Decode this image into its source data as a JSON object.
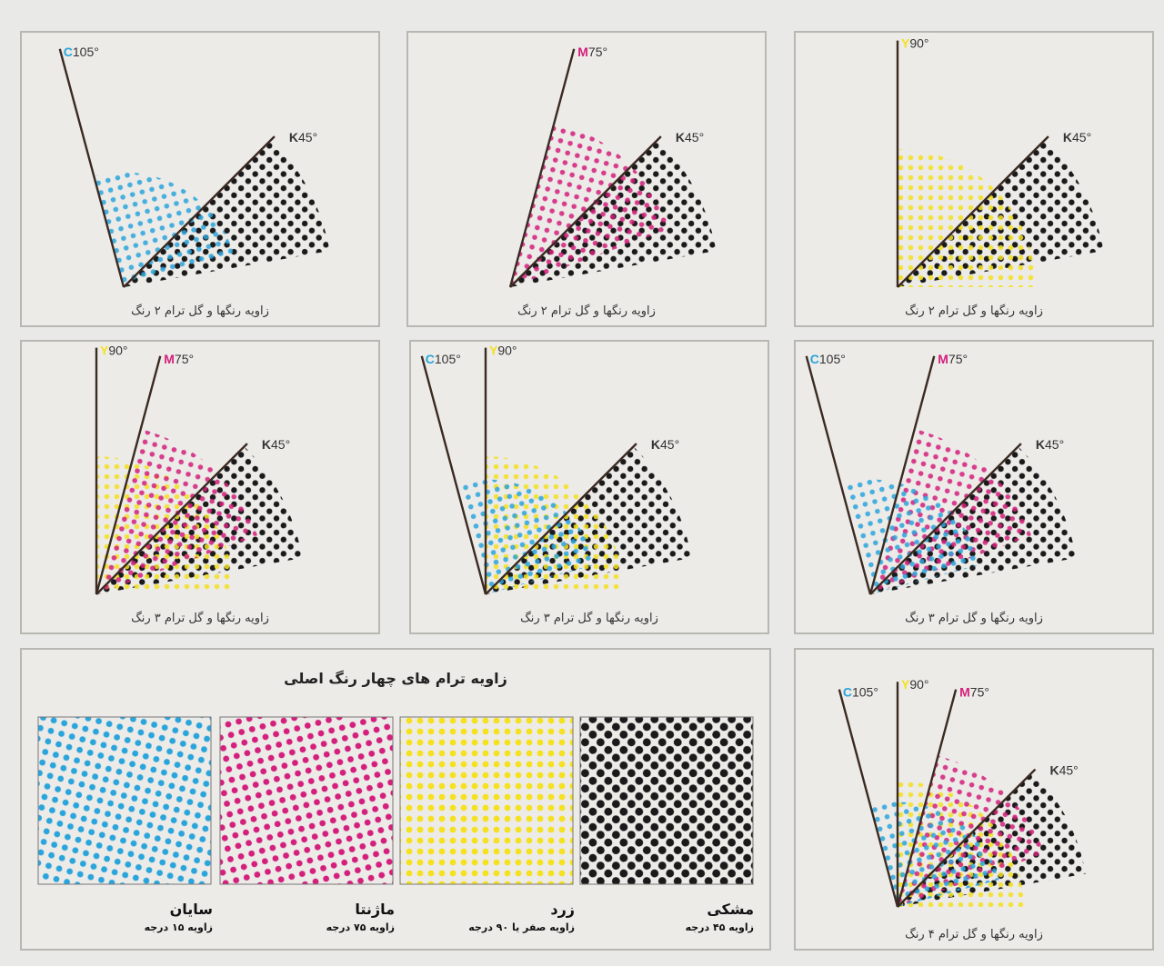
{
  "colors": {
    "C": "#2aa5dc",
    "M": "#d41f7c",
    "Y": "#f5e11e",
    "K": "#1a1a1a",
    "line": "#3b2a22"
  },
  "labels": {
    "C": "105°",
    "M": "75°",
    "Y": "90°",
    "K": "45°"
  },
  "letters": {
    "C": "C",
    "M": "M",
    "Y": "Y",
    "K": "K"
  },
  "panels": [
    {
      "id": "p1",
      "caption": "زاویه رنگها و گل ترام ۲ رنگ",
      "inks": [
        "C",
        "K"
      ]
    },
    {
      "id": "p2",
      "caption": "زاویه رنگها و گل ترام ۲ رنگ",
      "inks": [
        "M",
        "K"
      ]
    },
    {
      "id": "p3",
      "caption": "زاویه رنگها و گل ترام ۲ رنگ",
      "inks": [
        "Y",
        "K"
      ]
    },
    {
      "id": "p4",
      "caption": "زاویه رنگها و گل ترام ۳ رنگ",
      "inks": [
        "Y",
        "M",
        "K"
      ]
    },
    {
      "id": "p5",
      "caption": "زاویه رنگها و گل ترام ۳ رنگ",
      "inks": [
        "C",
        "Y",
        "K"
      ]
    },
    {
      "id": "p6",
      "caption": "زاویه رنگها و گل ترام ۳ رنگ",
      "inks": [
        "C",
        "M",
        "K"
      ]
    },
    {
      "id": "p7",
      "caption": "زاویه رنگها و گل ترام ۴ رنگ",
      "inks": [
        "C",
        "Y",
        "M",
        "K"
      ]
    }
  ],
  "swatches": {
    "title": "زاویه ترام های چهار رنگ اصلی",
    "items": [
      {
        "ink": "C",
        "name": "سایان",
        "sub": "زاویه ۱۵ درجه"
      },
      {
        "ink": "M",
        "name": "ماژنتا",
        "sub": "زاویه ۷۵ درجه"
      },
      {
        "ink": "Y",
        "name": "زرد",
        "sub": "زاویه صفر یا ۹۰ درجه"
      },
      {
        "ink": "K",
        "name": "مشکی",
        "sub": "زاویه ۴۵ درجه"
      }
    ]
  }
}
